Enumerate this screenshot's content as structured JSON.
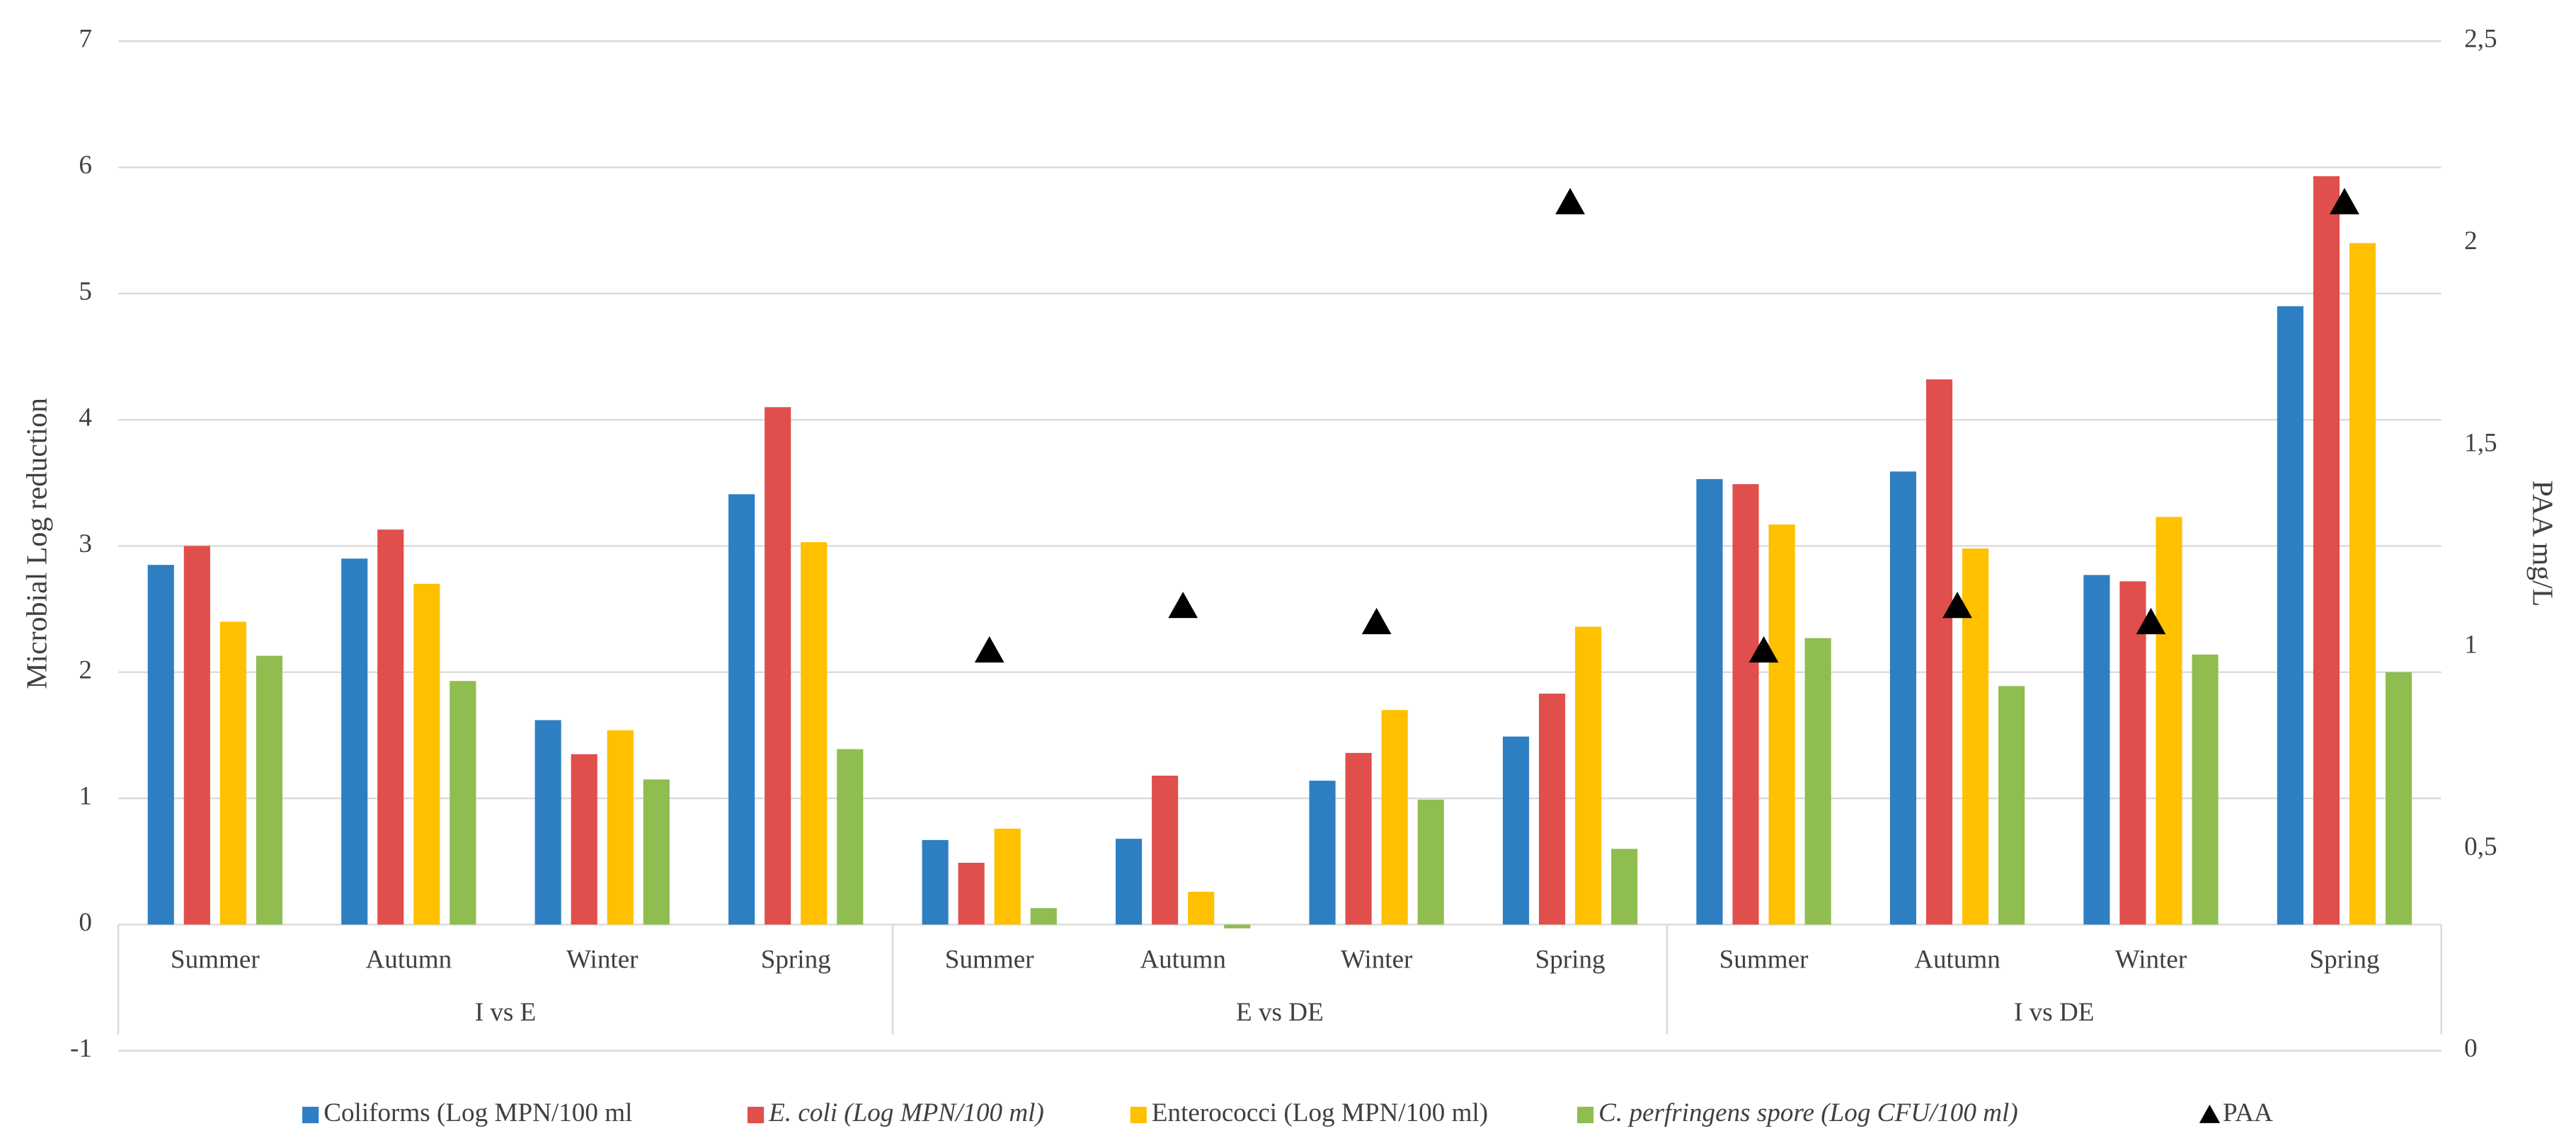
{
  "chart_data": {
    "type": "bar",
    "y_label": "Microbial Log reduction",
    "y2_label": "PAA mg/L",
    "categories": [
      "Summer",
      "Autumn",
      "Winter",
      "Spring",
      "Summer",
      "Autumn",
      "Winter",
      "Spring",
      "Summer",
      "Autumn",
      "Winter",
      "Spring"
    ],
    "groups": [
      "I vs E",
      "E vs DE",
      "I vs DE"
    ],
    "series": [
      {
        "name": "Coliforms (Log MPN/100 ml",
        "color": "#2e7fc2",
        "values": [
          2.85,
          2.9,
          1.62,
          3.41,
          0.67,
          0.68,
          1.14,
          1.49,
          3.53,
          3.59,
          2.77,
          4.9
        ]
      },
      {
        "name": "E. coli (Log MPN/100 ml)",
        "color": "#e04f4c",
        "font_style": "italic",
        "values": [
          3.0,
          3.13,
          1.35,
          4.1,
          0.49,
          1.18,
          1.36,
          1.83,
          3.49,
          4.32,
          2.72,
          5.93
        ]
      },
      {
        "name": "Enterococci (Log MPN/100 ml)",
        "color": "#ffc000",
        "values": [
          2.4,
          2.7,
          1.54,
          3.03,
          0.76,
          0.26,
          1.7,
          2.36,
          3.17,
          2.98,
          3.23,
          5.4
        ]
      },
      {
        "name": "C. perfringens spore (Log CFU/100 ml)",
        "color": "#8fbd4f",
        "font_style": "italic",
        "values": [
          2.13,
          1.93,
          1.15,
          1.39,
          0.13,
          -0.03,
          0.99,
          0.6,
          2.27,
          1.89,
          2.14,
          2.0
        ]
      },
      {
        "name": "PAA",
        "color": "#000000",
        "axis": "y2",
        "marker": "triangle",
        "values": [
          null,
          null,
          null,
          null,
          0.99,
          1.1,
          1.06,
          2.1,
          0.99,
          1.1,
          1.06,
          2.1
        ]
      }
    ],
    "ylim": [
      -1,
      7
    ],
    "yticks": [
      -1,
      0,
      1,
      2,
      3,
      4,
      5,
      6,
      7
    ],
    "y2lim": [
      0,
      2.5
    ],
    "y2ticks": [
      0,
      {
        "value": 0.5,
        "label": "0,5"
      },
      1,
      {
        "value": 1.5,
        "label": "1,5"
      },
      2,
      {
        "value": 2.5,
        "label": "2,5"
      }
    ],
    "grid": true,
    "legend": "bottom"
  }
}
